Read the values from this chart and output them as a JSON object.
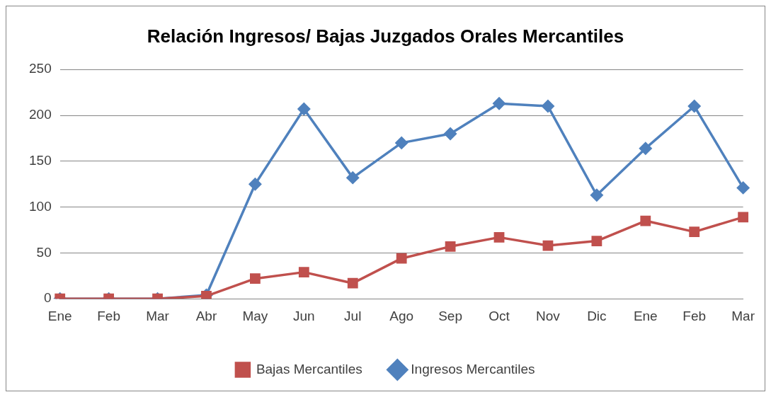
{
  "chart_data": {
    "type": "line",
    "title": "Relación Ingresos/ Bajas Juzgados Orales Mercantiles",
    "categories": [
      "Ene",
      "Feb",
      "Mar",
      "Abr",
      "May",
      "Jun",
      "Jul",
      "Ago",
      "Sep",
      "Oct",
      "Nov",
      "Dic",
      "Ene",
      "Feb",
      "Mar"
    ],
    "series": [
      {
        "name": "Ingresos Mercantiles",
        "color": "#4f81bd",
        "marker": "diamond",
        "values": [
          0,
          0,
          0,
          4,
          125,
          207,
          132,
          170,
          180,
          213,
          210,
          113,
          164,
          210,
          121
        ]
      },
      {
        "name": "Bajas Mercantiles",
        "color": "#c0504d",
        "marker": "square",
        "values": [
          0,
          0,
          0,
          3,
          22,
          29,
          17,
          44,
          57,
          67,
          58,
          63,
          85,
          73,
          89
        ]
      }
    ],
    "ylim": [
      0,
      250
    ],
    "yticks": [
      0,
      50,
      100,
      150,
      200,
      250
    ],
    "grid": "y",
    "legend": "bottom",
    "line_style": "solid"
  }
}
